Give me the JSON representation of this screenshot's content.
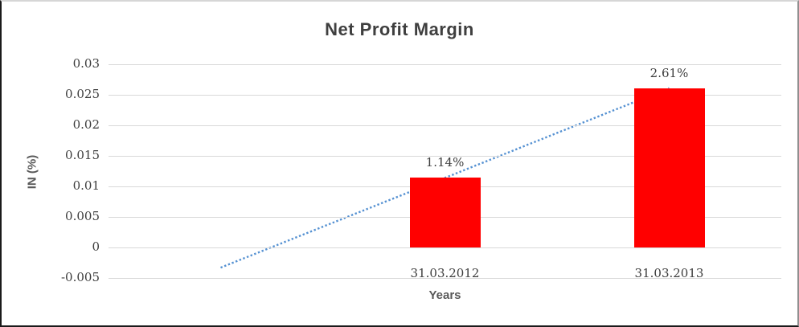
{
  "chart_data": {
    "type": "bar",
    "title": "Net Profit Margin",
    "xlabel": "Years",
    "ylabel": "IN (%)",
    "categories": [
      "31.03.2012",
      "31.03.2013"
    ],
    "values": [
      0.0114,
      0.0261
    ],
    "data_labels": [
      "1.14%",
      "2.61%"
    ],
    "ytick_labels": [
      "0.03",
      "0.025",
      "0.02",
      "0.015",
      "0.01",
      "0.005",
      "0",
      "-0.005"
    ],
    "ylim": [
      -0.005,
      0.03
    ],
    "grid": true,
    "legend": "none",
    "slot_count": 3,
    "bar_slots": [
      1,
      2
    ],
    "trendline": {
      "type": "linear",
      "style": "dotted",
      "from_slot": 0,
      "to_slot": 2
    },
    "colors": {
      "bar": "#ff0000",
      "trendline": "#5591d2",
      "gridline": "#d9d9d9",
      "title": "#3f3f3f",
      "axis_label": "#595959",
      "tick_label": "#3d3d3d"
    }
  }
}
